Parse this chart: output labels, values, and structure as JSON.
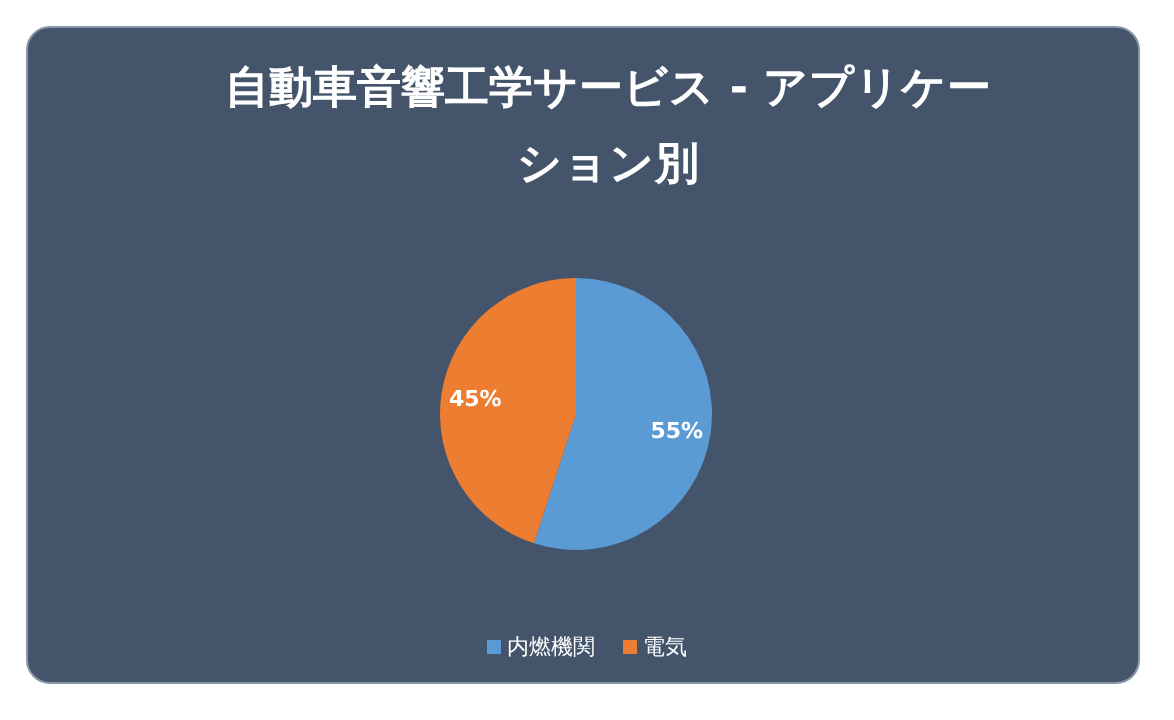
{
  "chart_data": {
    "type": "pie",
    "title": "自動車音響工学サービス - アプリケーション別",
    "categories": [
      "内燃機関",
      "電気"
    ],
    "values": [
      55,
      45
    ],
    "colors": [
      "#5b9bd5",
      "#ed7d31"
    ],
    "value_labels": [
      "55%",
      "45%"
    ],
    "legend": "bottom"
  }
}
